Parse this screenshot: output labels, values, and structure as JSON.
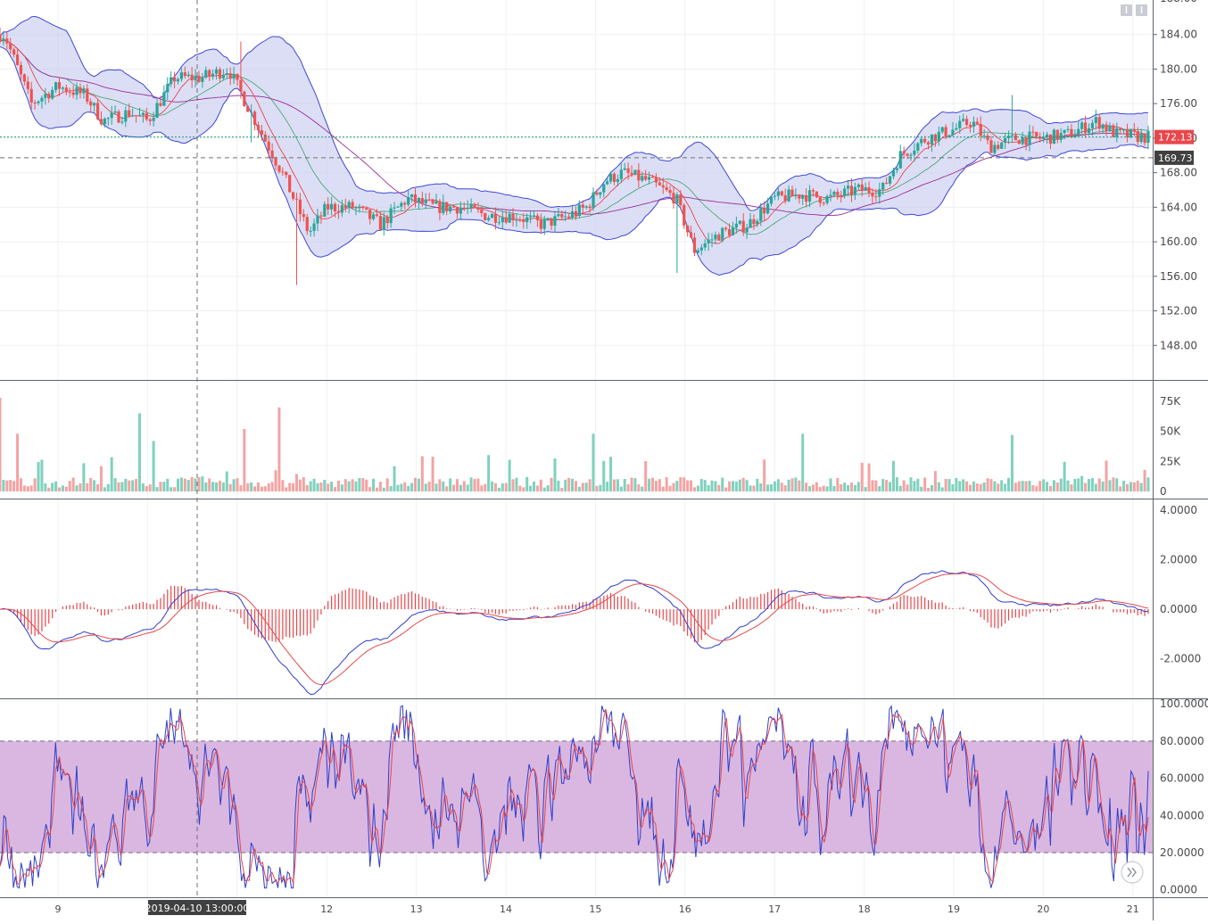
{
  "chart_data": [
    {
      "panel": "price",
      "type": "candlestick",
      "overlays": [
        "bollinger-bands",
        "moving-averages"
      ],
      "ylim": [
        144,
        188
      ],
      "yticks": [
        "148.00",
        "152.00",
        "156.00",
        "160.00",
        "164.00",
        "168.00",
        "172.00",
        "176.00",
        "180.00",
        "184.00"
      ],
      "last_price": 172.13,
      "last_price_label": "172.13",
      "crosshair_price": 169.73,
      "crosshair_price_label": "169.73",
      "approx_path": [
        [
          8.4,
          184
        ],
        [
          8.7,
          176
        ],
        [
          9.0,
          178
        ],
        [
          9.3,
          177
        ],
        [
          9.5,
          174
        ],
        [
          9.8,
          175
        ],
        [
          10.0,
          174
        ],
        [
          10.3,
          179
        ],
        [
          10.6,
          179
        ],
        [
          10.9,
          180
        ],
        [
          11.2,
          174
        ],
        [
          11.5,
          168
        ],
        [
          11.8,
          161
        ],
        [
          12.0,
          164
        ],
        [
          12.3,
          164
        ],
        [
          12.6,
          162
        ],
        [
          12.9,
          165
        ],
        [
          13.2,
          164
        ],
        [
          13.5,
          164
        ],
        [
          13.8,
          163
        ],
        [
          14.1,
          163
        ],
        [
          14.4,
          162
        ],
        [
          14.7,
          163
        ],
        [
          14.9,
          164
        ],
        [
          15.1,
          167
        ],
        [
          15.3,
          168
        ],
        [
          15.6,
          167
        ],
        [
          15.9,
          165
        ],
        [
          16.1,
          159
        ],
        [
          16.4,
          161
        ],
        [
          16.7,
          162
        ],
        [
          17.0,
          165
        ],
        [
          17.3,
          165.5
        ],
        [
          17.6,
          165
        ],
        [
          17.9,
          166
        ],
        [
          18.2,
          166
        ],
        [
          18.4,
          170
        ],
        [
          18.7,
          172
        ],
        [
          19.0,
          173
        ],
        [
          19.2,
          174
        ],
        [
          19.4,
          171
        ],
        [
          19.7,
          172
        ],
        [
          20.0,
          172
        ],
        [
          20.3,
          172.5
        ],
        [
          20.6,
          174
        ],
        [
          20.8,
          172.5
        ],
        [
          21.1,
          172.13
        ]
      ]
    },
    {
      "panel": "volume",
      "type": "bar",
      "yticks": [
        "0",
        "25K",
        "50K",
        "75K"
      ],
      "ylim": [
        0,
        75000
      ]
    },
    {
      "panel": "macd",
      "type": "line",
      "series": [
        {
          "role": "macd",
          "color": "#2f3ec9"
        },
        {
          "role": "signal",
          "color": "#e8474b"
        },
        {
          "role": "histogram",
          "color": "#e8474b"
        }
      ],
      "yticks": [
        "-2.0000",
        "0.0000",
        "2.0000",
        "4.0000"
      ],
      "ylim": [
        -3.6,
        4.4
      ]
    },
    {
      "panel": "stochastic",
      "type": "line",
      "series": [
        {
          "role": "%K",
          "color": "#2f3ec9"
        },
        {
          "role": "%D",
          "color": "#e8474b"
        }
      ],
      "band": [
        20,
        80
      ],
      "yticks": [
        "0.0000",
        "20.0000",
        "40.0000",
        "60.0000",
        "80.0000",
        "100.0000"
      ],
      "ylim": [
        -4,
        102
      ]
    }
  ],
  "xaxis": {
    "labels": [
      {
        "day": 9,
        "text": "9"
      },
      {
        "day": 12,
        "text": "12"
      },
      {
        "day": 13,
        "text": "13"
      },
      {
        "day": 14,
        "text": "14"
      },
      {
        "day": 15,
        "text": "15"
      },
      {
        "day": 16,
        "text": "16"
      },
      {
        "day": 17,
        "text": "17"
      },
      {
        "day": 18,
        "text": "18"
      },
      {
        "day": 19,
        "text": "19"
      },
      {
        "day": 20,
        "text": "20"
      },
      {
        "day": 21,
        "text": "21"
      }
    ],
    "crosshair_label": "2019-04-10 13:00:00"
  },
  "colors": {
    "up": "#26a69a",
    "down": "#ef5350",
    "band_fill": "#c5c8ef",
    "band_line": "#3f48d6",
    "ma_fast": "#e8474b",
    "ma_slow": "#9a2f9a",
    "ma_mid": "#3aa36b",
    "stoch_band": "#d9b7e0",
    "grid": "#eef0f3",
    "axis_text": "#4a4a4a",
    "last_price_badge": "#e8474b",
    "crosshair_badge": "#404040"
  },
  "icons": {
    "top_buttons": [
      "download-icon",
      "fullscreen-icon"
    ],
    "scroll_button": "double-chevron-right-icon"
  }
}
